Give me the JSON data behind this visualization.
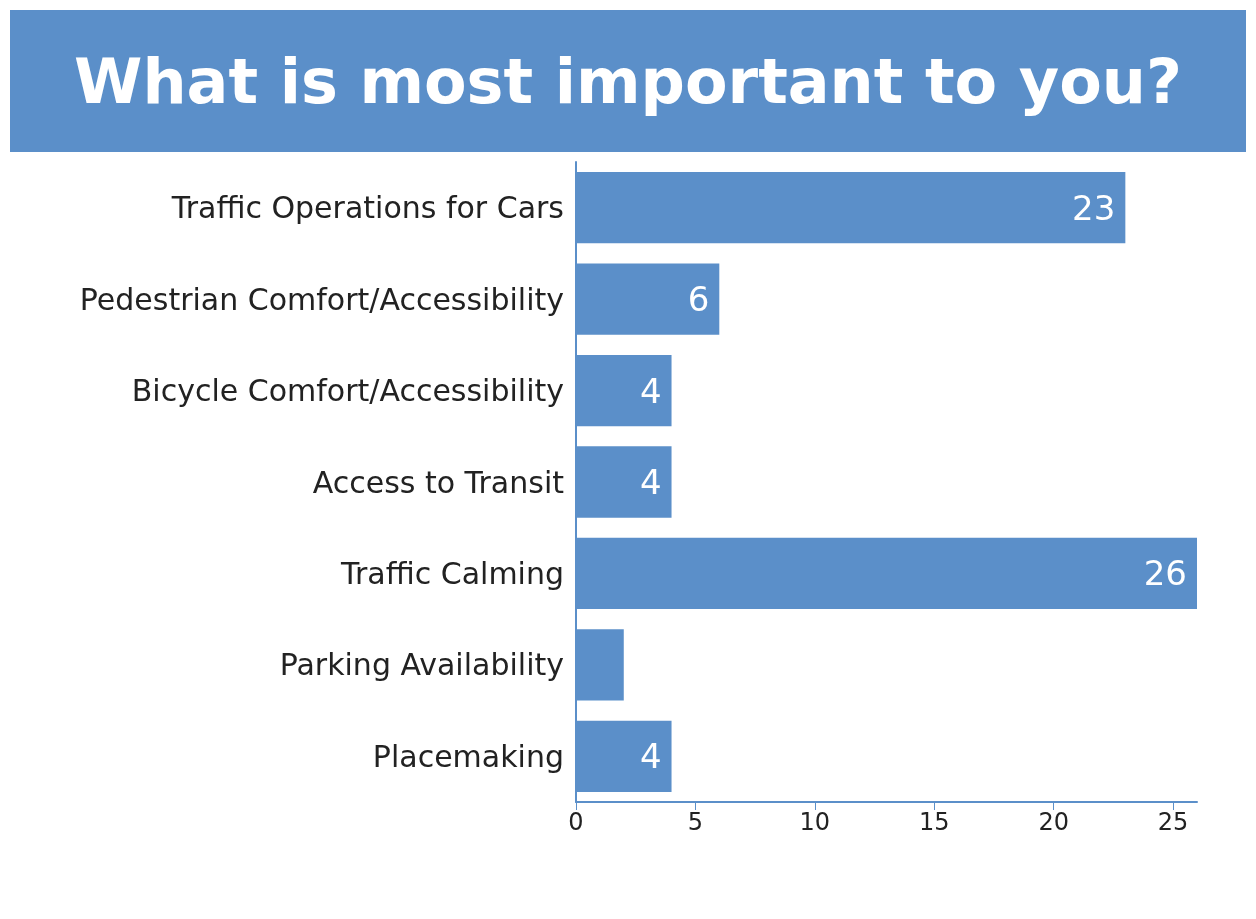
{
  "chart_data": {
    "type": "bar",
    "orientation": "horizontal",
    "title": "What is most important to you?",
    "categories": [
      "Traffic Operations for Cars",
      "Pedestrian Comfort/Accessibility",
      "Bicycle Comfort/Accessibility",
      "Access to Transit",
      "Traffic Calming",
      "Parking Availability",
      "Placemaking"
    ],
    "values": [
      23,
      6,
      4,
      4,
      26,
      2,
      4
    ],
    "value_labels": [
      "23",
      "6",
      "4",
      "4",
      "26",
      null,
      "4"
    ],
    "color": "#5b8fc9",
    "xlim": [
      0,
      26
    ],
    "xticks": [
      0,
      5,
      10,
      15,
      20,
      25
    ],
    "grid": false
  }
}
